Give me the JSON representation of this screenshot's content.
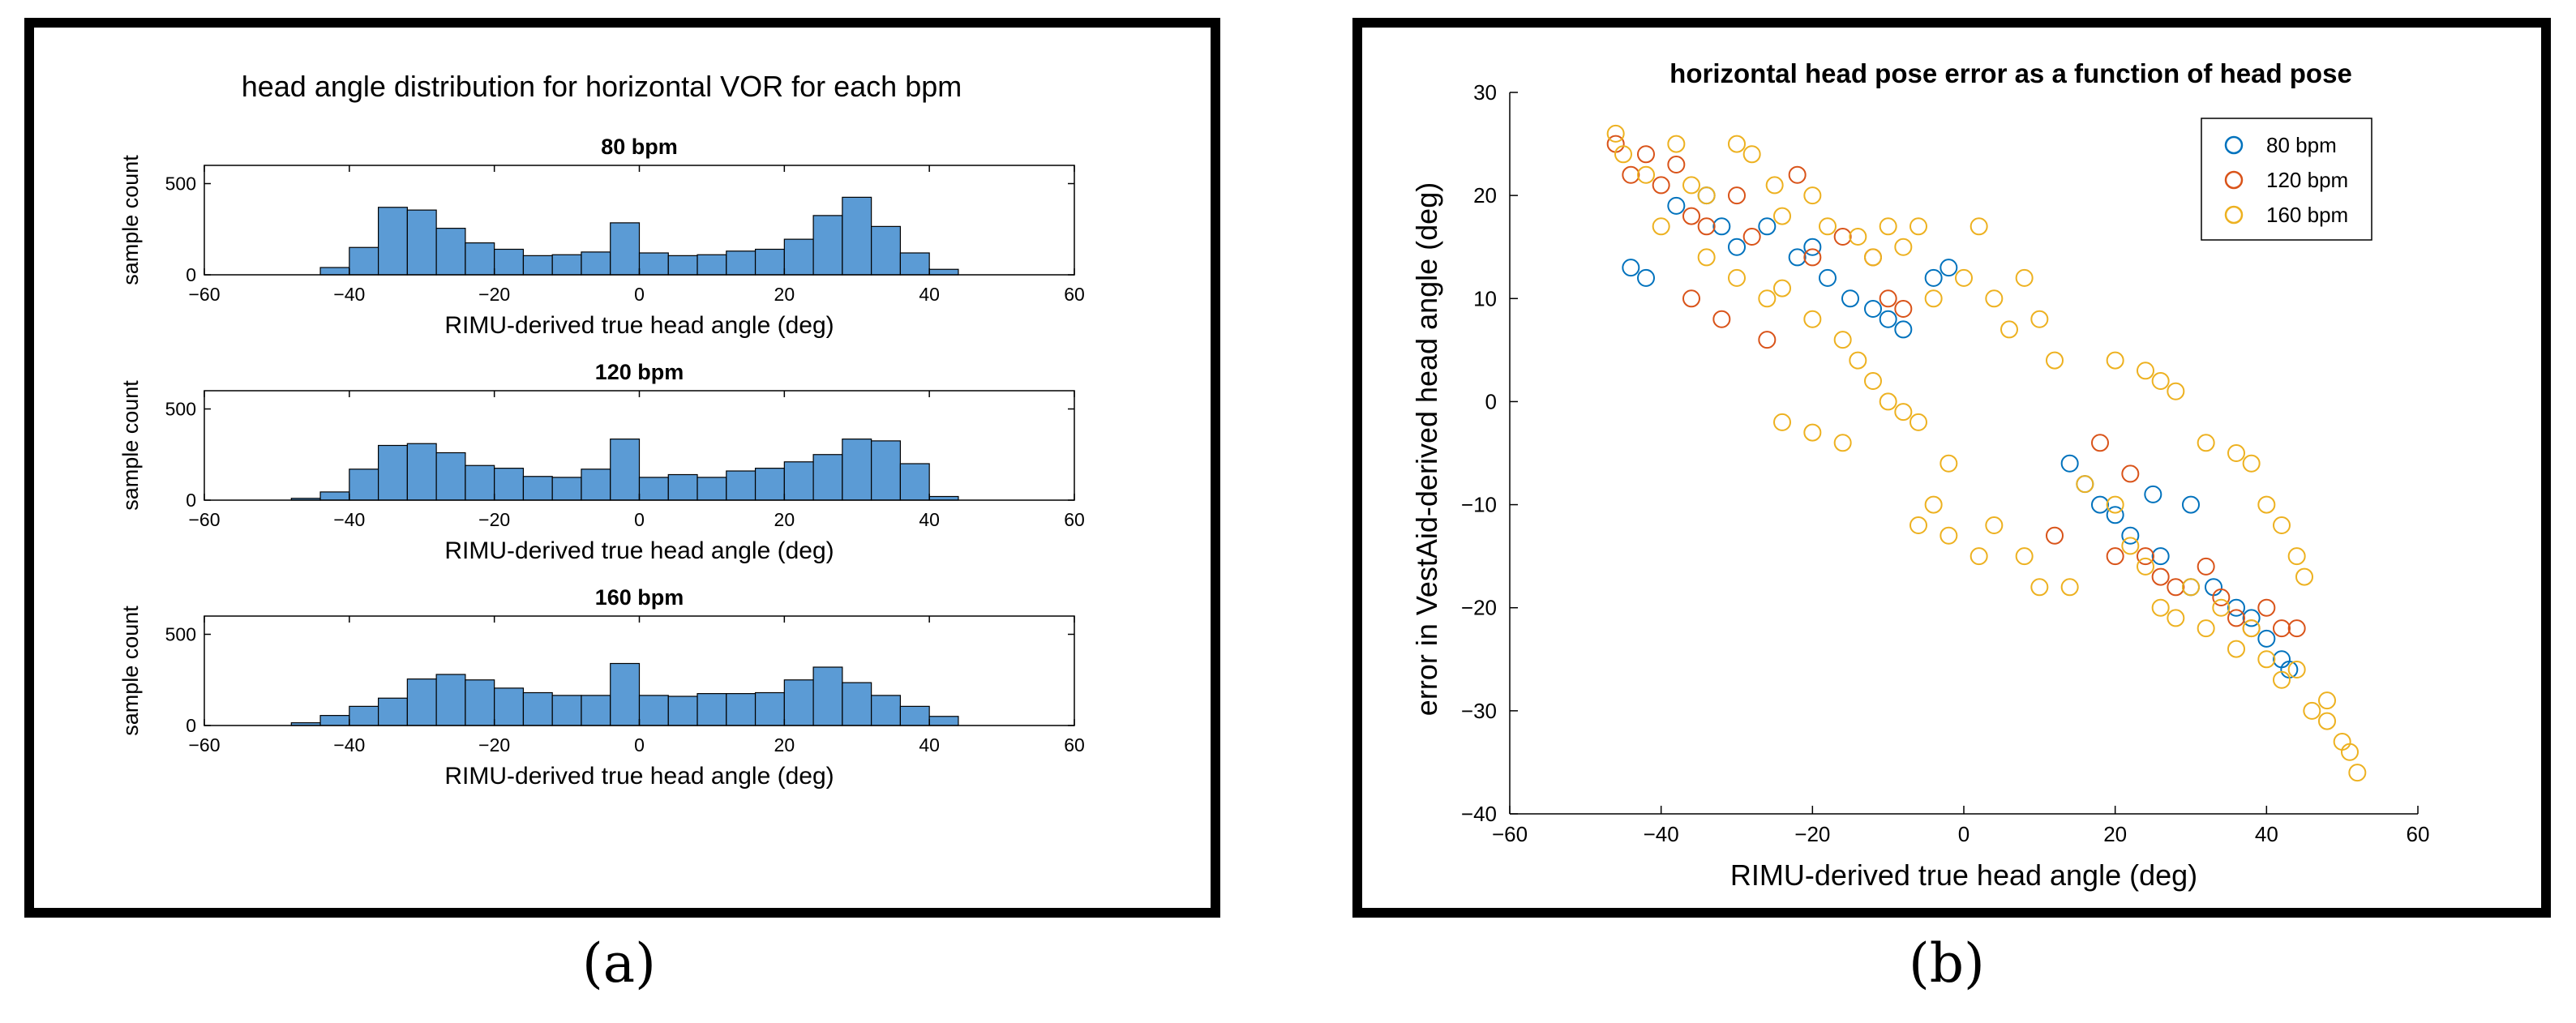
{
  "panel_a": {
    "caption": "(a)",
    "chart_data": [
      {
        "type": "bar",
        "suptitle": "head angle distribution for horizontal VOR for each bpm",
        "title": "80 bpm",
        "xlabel": "RIMU-derived true head angle (deg)",
        "ylabel": "sample count",
        "xlim": [
          -60,
          60
        ],
        "ylim": [
          0,
          600
        ],
        "xticks": [
          "−60",
          "−40",
          "−20",
          "0",
          "20",
          "40",
          "60"
        ],
        "yticks": [
          "0",
          "500"
        ],
        "bin_edges": [
          -48,
          -44,
          -40,
          -36,
          -32,
          -28,
          -24,
          -20,
          -16,
          -12,
          -8,
          -4,
          0,
          4,
          8,
          12,
          16,
          20,
          24,
          28,
          32,
          36,
          40,
          44
        ],
        "values": [
          0,
          40,
          150,
          370,
          355,
          255,
          175,
          140,
          105,
          110,
          125,
          285,
          120,
          105,
          110,
          130,
          140,
          195,
          325,
          425,
          265,
          120,
          30
        ],
        "bar_color": "#5b9bd5"
      },
      {
        "type": "bar",
        "title": "120 bpm",
        "xlabel": "RIMU-derived true head angle (deg)",
        "ylabel": "sample count",
        "xlim": [
          -60,
          60
        ],
        "ylim": [
          0,
          600
        ],
        "xticks": [
          "−60",
          "−40",
          "−20",
          "0",
          "20",
          "40",
          "60"
        ],
        "yticks": [
          "0",
          "500"
        ],
        "bin_edges": [
          -48,
          -44,
          -40,
          -36,
          -32,
          -28,
          -24,
          -20,
          -16,
          -12,
          -8,
          -4,
          0,
          4,
          8,
          12,
          16,
          20,
          24,
          28,
          32,
          36,
          40,
          44
        ],
        "values": [
          10,
          45,
          170,
          300,
          310,
          260,
          190,
          175,
          130,
          125,
          170,
          335,
          125,
          140,
          125,
          160,
          175,
          210,
          250,
          335,
          325,
          200,
          20
        ],
        "bar_color": "#5b9bd5"
      },
      {
        "type": "bar",
        "title": "160 bpm",
        "xlabel": "RIMU-derived true head angle (deg)",
        "ylabel": "sample count",
        "xlim": [
          -60,
          60
        ],
        "ylim": [
          0,
          600
        ],
        "xticks": [
          "−60",
          "−40",
          "−20",
          "0",
          "20",
          "40",
          "60"
        ],
        "yticks": [
          "0",
          "500"
        ],
        "bin_edges": [
          -48,
          -44,
          -40,
          -36,
          -32,
          -28,
          -24,
          -20,
          -16,
          -12,
          -8,
          -4,
          0,
          4,
          8,
          12,
          16,
          20,
          24,
          28,
          32,
          36,
          40,
          44
        ],
        "values": [
          15,
          55,
          105,
          150,
          255,
          280,
          250,
          205,
          180,
          165,
          165,
          340,
          165,
          160,
          175,
          175,
          180,
          250,
          320,
          235,
          165,
          105,
          50
        ],
        "bar_color": "#5b9bd5"
      }
    ]
  },
  "panel_b": {
    "caption": "(b)",
    "chart_data": {
      "type": "scatter",
      "title": "horizontal head pose error as a function of head pose",
      "xlabel": "RIMU-derived true head angle (deg)",
      "ylabel": "error in VestAid-derived head angle (deg)",
      "xlim": [
        -60,
        60
      ],
      "ylim": [
        -40,
        30
      ],
      "xticks": [
        "−60",
        "−40",
        "−20",
        "0",
        "20",
        "40",
        "60"
      ],
      "yticks": [
        "−40",
        "−30",
        "−20",
        "−10",
        "0",
        "10",
        "20",
        "30"
      ],
      "legend_position": "top-right",
      "series": [
        {
          "name": "80 bpm",
          "color": "#0072bd",
          "points": [
            [
              -44,
              13
            ],
            [
              -42,
              12
            ],
            [
              -38,
              19
            ],
            [
              -34,
              20
            ],
            [
              -32,
              17
            ],
            [
              -30,
              15
            ],
            [
              -26,
              17
            ],
            [
              -22,
              14
            ],
            [
              -20,
              15
            ],
            [
              -18,
              12
            ],
            [
              -15,
              10
            ],
            [
              -12,
              9
            ],
            [
              -10,
              8
            ],
            [
              -8,
              7
            ],
            [
              -4,
              12
            ],
            [
              -2,
              13
            ],
            [
              14,
              -6
            ],
            [
              16,
              -8
            ],
            [
              18,
              -10
            ],
            [
              20,
              -11
            ],
            [
              22,
              -13
            ],
            [
              26,
              -15
            ],
            [
              30,
              -18
            ],
            [
              33,
              -18
            ],
            [
              36,
              -20
            ],
            [
              38,
              -21
            ],
            [
              40,
              -23
            ],
            [
              42,
              -25
            ],
            [
              43,
              -26
            ],
            [
              30,
              -10
            ],
            [
              25,
              -9
            ]
          ]
        },
        {
          "name": "120 bpm",
          "color": "#d95319",
          "points": [
            [
              -46,
              25
            ],
            [
              -44,
              22
            ],
            [
              -42,
              24
            ],
            [
              -40,
              21
            ],
            [
              -38,
              23
            ],
            [
              -36,
              18
            ],
            [
              -34,
              17
            ],
            [
              -30,
              20
            ],
            [
              -28,
              16
            ],
            [
              -22,
              22
            ],
            [
              -20,
              14
            ],
            [
              -16,
              16
            ],
            [
              -12,
              14
            ],
            [
              -10,
              10
            ],
            [
              -8,
              9
            ],
            [
              -36,
              10
            ],
            [
              -32,
              8
            ],
            [
              -26,
              6
            ],
            [
              18,
              -4
            ],
            [
              22,
              -7
            ],
            [
              24,
              -15
            ],
            [
              26,
              -17
            ],
            [
              28,
              -18
            ],
            [
              32,
              -16
            ],
            [
              34,
              -19
            ],
            [
              36,
              -21
            ],
            [
              38,
              -22
            ],
            [
              40,
              -20
            ],
            [
              42,
              -22
            ],
            [
              44,
              -22
            ],
            [
              20,
              -15
            ],
            [
              12,
              -13
            ]
          ]
        },
        {
          "name": "160 bpm",
          "color": "#edb120",
          "points": [
            [
              -46,
              26
            ],
            [
              -45,
              24
            ],
            [
              -42,
              22
            ],
            [
              -38,
              25
            ],
            [
              -36,
              21
            ],
            [
              -34,
              20
            ],
            [
              -30,
              25
            ],
            [
              -28,
              24
            ],
            [
              -25,
              21
            ],
            [
              -24,
              18
            ],
            [
              -20,
              20
            ],
            [
              -18,
              17
            ],
            [
              -14,
              16
            ],
            [
              -12,
              14
            ],
            [
              -10,
              17
            ],
            [
              -8,
              15
            ],
            [
              -6,
              17
            ],
            [
              -4,
              10
            ],
            [
              0,
              12
            ],
            [
              2,
              17
            ],
            [
              4,
              10
            ],
            [
              6,
              7
            ],
            [
              8,
              12
            ],
            [
              10,
              8
            ],
            [
              12,
              4
            ],
            [
              -2,
              -6
            ],
            [
              -4,
              -10
            ],
            [
              -6,
              -12
            ],
            [
              -2,
              -13
            ],
            [
              2,
              -15
            ],
            [
              4,
              -12
            ],
            [
              8,
              -15
            ],
            [
              10,
              -18
            ],
            [
              14,
              -18
            ],
            [
              16,
              -8
            ],
            [
              20,
              -10
            ],
            [
              22,
              -14
            ],
            [
              24,
              -16
            ],
            [
              26,
              -20
            ],
            [
              28,
              -21
            ],
            [
              30,
              -18
            ],
            [
              32,
              -22
            ],
            [
              34,
              -20
            ],
            [
              36,
              -24
            ],
            [
              38,
              -22
            ],
            [
              40,
              -25
            ],
            [
              42,
              -27
            ],
            [
              44,
              -26
            ],
            [
              46,
              -30
            ],
            [
              48,
              -31
            ],
            [
              50,
              -33
            ],
            [
              52,
              -36
            ],
            [
              51,
              -34
            ],
            [
              48,
              -29
            ],
            [
              45,
              -17
            ],
            [
              44,
              -15
            ],
            [
              42,
              -12
            ],
            [
              40,
              -10
            ],
            [
              38,
              -6
            ],
            [
              36,
              -5
            ],
            [
              32,
              -4
            ],
            [
              28,
              1
            ],
            [
              26,
              2
            ],
            [
              24,
              3
            ],
            [
              20,
              4
            ],
            [
              -40,
              17
            ],
            [
              -34,
              14
            ],
            [
              -30,
              12
            ],
            [
              -26,
              10
            ],
            [
              -24,
              11
            ],
            [
              -20,
              8
            ],
            [
              -16,
              6
            ],
            [
              -14,
              4
            ],
            [
              -12,
              2
            ],
            [
              -10,
              0
            ],
            [
              -8,
              -1
            ],
            [
              -6,
              -2
            ],
            [
              -16,
              -4
            ],
            [
              -20,
              -3
            ],
            [
              -24,
              -2
            ]
          ]
        }
      ]
    }
  }
}
